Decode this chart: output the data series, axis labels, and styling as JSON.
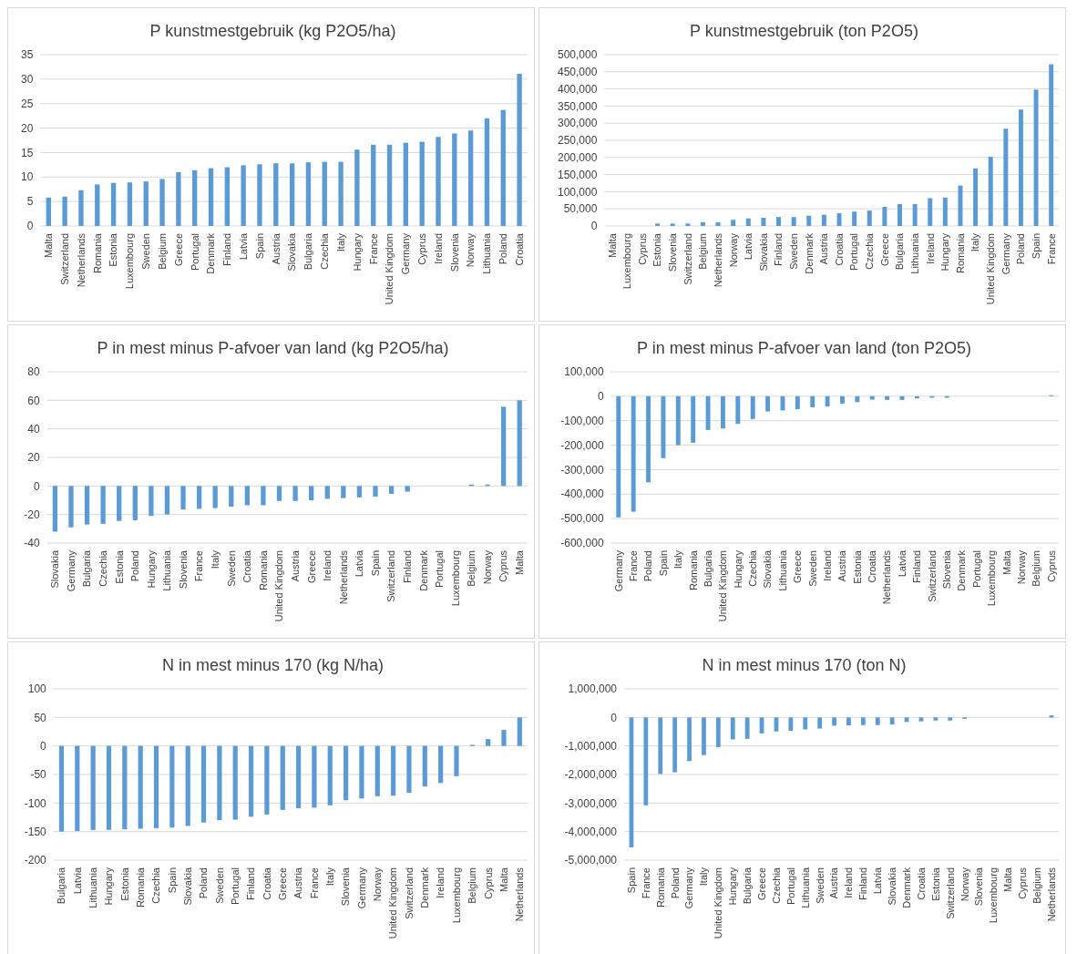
{
  "chart_data": [
    {
      "type": "bar",
      "title": "P kunstmestgebruik (kg P2O5/ha)",
      "categories": [
        "Malta",
        "Switzerland",
        "Netherlands",
        "Romania",
        "Estonia",
        "Luxembourg",
        "Sweden",
        "Belgium",
        "Greece",
        "Portugal",
        "Denmark",
        "Finland",
        "Latvia",
        "Spain",
        "Austria",
        "Slovakia",
        "Bulgaria",
        "Czechia",
        "Italy",
        "Hungary",
        "France",
        "United Kingdom",
        "Germany",
        "Cyprus",
        "Ireland",
        "Slovenia",
        "Norway",
        "Lithuania",
        "Poland",
        "Croatia"
      ],
      "values": [
        5.8,
        6,
        7.3,
        8.5,
        8.8,
        8.9,
        9.1,
        9.6,
        11,
        11.4,
        11.8,
        12,
        12.4,
        12.6,
        12.8,
        12.8,
        13,
        13.1,
        13.1,
        15.6,
        16.6,
        16.6,
        17,
        17.2,
        18.2,
        18.9,
        19.5,
        22,
        23.7,
        31.1
      ],
      "color": "#5b9bd5",
      "ylim": [
        0,
        35
      ],
      "yticks": [
        0,
        5,
        10,
        15,
        20,
        25,
        30,
        35
      ],
      "grid": "y"
    },
    {
      "type": "bar",
      "title": "P kunstmestgebruik (ton P2O5)",
      "categories": [
        "Malta",
        "Luxembourg",
        "Cyprus",
        "Estonia",
        "Slovenia",
        "Switzerland",
        "Belgium",
        "Netherlands",
        "Norway",
        "Latvia",
        "Slovakia",
        "Finland",
        "Sweden",
        "Denmark",
        "Austria",
        "Croatia",
        "Portugal",
        "Czechia",
        "Greece",
        "Bulgaria",
        "Lithuania",
        "Ireland",
        "Hungary",
        "Romania",
        "Italy",
        "United Kingdom",
        "Germany",
        "Poland",
        "Spain",
        "France"
      ],
      "values": [
        0,
        0,
        0,
        7000,
        7000,
        7000,
        11000,
        11000,
        18000,
        22000,
        24000,
        26000,
        26000,
        30000,
        33000,
        37000,
        42000,
        45000,
        56000,
        64000,
        64000,
        81000,
        83000,
        118000,
        168000,
        202000,
        284000,
        340000,
        398000,
        472000
      ],
      "color": "#5b9bd5",
      "ylim": [
        0,
        500000
      ],
      "yticks": [
        0,
        {
          "value": 50000,
          "label": "50,000"
        },
        {
          "value": 100000,
          "label": "100,000"
        },
        {
          "value": 150000,
          "label": "150,000"
        },
        {
          "value": 200000,
          "label": "200,000"
        },
        {
          "value": 250000,
          "label": "250,000"
        },
        {
          "value": 300000,
          "label": "300,000"
        },
        {
          "value": 350000,
          "label": "350,000"
        },
        {
          "value": 400000,
          "label": "400,000"
        },
        {
          "value": 450000,
          "label": "450,000"
        },
        {
          "value": 500000,
          "label": "500,000"
        }
      ],
      "grid": "y"
    },
    {
      "type": "bar",
      "title": "P in mest minus P-afvoer van land (kg P2O5/ha)",
      "categories": [
        "Slovakia",
        "Germany",
        "Bulgaria",
        "Czechia",
        "Estonia",
        "Poland",
        "Hungary",
        "Lithuania",
        "Slovenia",
        "France",
        "Italy",
        "Sweden",
        "Croatia",
        "Romania",
        "United Kingdom",
        "Austria",
        "Greece",
        "Ireland",
        "Netherlands",
        "Latvia",
        "Spain",
        "Switzerland",
        "Finland",
        "Denmark",
        "Portugal",
        "Luxembourg",
        "Belgium",
        "Norway",
        "Cyprus",
        "Malta"
      ],
      "values": [
        -32,
        -29,
        -27,
        -26.5,
        -24.5,
        -24,
        -21,
        -20,
        -16.5,
        -16,
        -15.5,
        -14.5,
        -13.5,
        -13.5,
        -10.5,
        -10.5,
        -10,
        -9,
        -8.5,
        -8,
        -7.5,
        -5.5,
        -4,
        0,
        0,
        0,
        1,
        1,
        55.5,
        60
      ],
      "color": "#5b9bd5",
      "ylim": [
        -40,
        80
      ],
      "yticks": [
        -40,
        -20,
        0,
        20,
        40,
        60,
        80
      ],
      "grid": "y"
    },
    {
      "type": "bar",
      "title": "P in mest minus P-afvoer van land (ton P2O5)",
      "categories": [
        "Germany",
        "France",
        "Poland",
        "Spain",
        "Italy",
        "Romania",
        "Bulgaria",
        "United Kingdom",
        "Hungary",
        "Czechia",
        "Slovakia",
        "Lithuania",
        "Greece",
        "Sweden",
        "Ireland",
        "Austria",
        "Estonia",
        "Croatia",
        "Netherlands",
        "Latvia",
        "Finland",
        "Switzerland",
        "Slovenia",
        "Denmark",
        "Portugal",
        "Luxembourg",
        "Malta",
        "Norway",
        "Belgium",
        "Cyprus"
      ],
      "values": [
        -495000,
        -472000,
        -352000,
        -253000,
        -200000,
        -190000,
        -138000,
        -132000,
        -113000,
        -93000,
        -62000,
        -58000,
        -53000,
        -45000,
        -42000,
        -30000,
        -24000,
        -14000,
        -15000,
        -15000,
        -9000,
        -6000,
        -6000,
        0,
        0,
        0,
        0,
        0,
        0,
        4000
      ],
      "color": "#5b9bd5",
      "ylim": [
        -600000,
        100000
      ],
      "yticks": [
        {
          "value": -600000,
          "label": "-600,000"
        },
        {
          "value": -500000,
          "label": "-500,000"
        },
        {
          "value": -400000,
          "label": "-400,000"
        },
        {
          "value": -300000,
          "label": "-300,000"
        },
        {
          "value": -200000,
          "label": "-200,000"
        },
        {
          "value": -100000,
          "label": "-100,000"
        },
        0,
        {
          "value": 100000,
          "label": "100,000"
        }
      ],
      "grid": "y"
    },
    {
      "type": "bar",
      "title": "N in mest minus 170 (kg N/ha)",
      "categories": [
        "Bulgaria",
        "Latvia",
        "Lithuania",
        "Hungary",
        "Estonia",
        "Romania",
        "Czechia",
        "Spain",
        "Slovakia",
        "Poland",
        "Sweden",
        "Portugal",
        "Finland",
        "Croatia",
        "Greece",
        "Austria",
        "France",
        "Italy",
        "Slovenia",
        "Germany",
        "Norway",
        "United Kingdom",
        "Switzerland",
        "Denmark",
        "Ireland",
        "Luxembourg",
        "Belgium",
        "Cyprus",
        "Malta",
        "Netherlands"
      ],
      "values": [
        -150,
        -149,
        -147,
        -147,
        -146,
        -145,
        -144,
        -143,
        -140,
        -134,
        -130,
        -129,
        -124,
        -120,
        -112,
        -109,
        -108,
        -104,
        -95,
        -92,
        -88,
        -87,
        -82,
        -71,
        -65,
        -53,
        2,
        12,
        28,
        50
      ],
      "color": "#5b9bd5",
      "ylim": [
        -200,
        100
      ],
      "yticks": [
        -200,
        -150,
        -100,
        -50,
        0,
        50,
        100
      ],
      "grid": "y"
    },
    {
      "type": "bar",
      "title": "N in mest minus 170 (ton N)",
      "categories": [
        "Spain",
        "France",
        "Romania",
        "Poland",
        "Germany",
        "Italy",
        "United Kingdom",
        "Hungary",
        "Bulgaria",
        "Greece",
        "Czechia",
        "Portugal",
        "Lithuania",
        "Sweden",
        "Austria",
        "Ireland",
        "Finland",
        "Latvia",
        "Slovakia",
        "Denmark",
        "Croatia",
        "Estonia",
        "Switzerland",
        "Norway",
        "Slovenia",
        "Luxembourg",
        "Malta",
        "Cyprus",
        "Belgium",
        "Netherlands"
      ],
      "values": [
        -4550000,
        -3080000,
        -1980000,
        -1920000,
        -1530000,
        -1320000,
        -1040000,
        -770000,
        -750000,
        -560000,
        -490000,
        -470000,
        -420000,
        -390000,
        -290000,
        -280000,
        -270000,
        -270000,
        -250000,
        -160000,
        -140000,
        -110000,
        -110000,
        -50000,
        0,
        0,
        0,
        0,
        0,
        70000
      ],
      "color": "#5b9bd5",
      "ylim": [
        -5000000,
        1000000
      ],
      "yticks": [
        {
          "value": -5000000,
          "label": "-5,000,000"
        },
        {
          "value": -4000000,
          "label": "-4,000,000"
        },
        {
          "value": -3000000,
          "label": "-3,000,000"
        },
        {
          "value": -2000000,
          "label": "-2,000,000"
        },
        {
          "value": -1000000,
          "label": "-1,000,000"
        },
        0,
        {
          "value": 1000000,
          "label": "1,000,000"
        }
      ],
      "grid": "y"
    }
  ]
}
